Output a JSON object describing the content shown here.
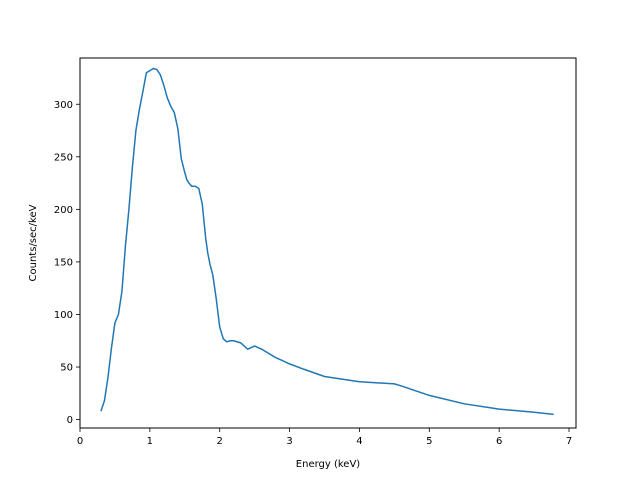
{
  "chart_data": {
    "type": "line",
    "title": "",
    "xlabel": "Energy (keV)",
    "ylabel": "Counts/sec/keV",
    "xlim": [
      0,
      7.1
    ],
    "ylim": [
      -8,
      344
    ],
    "x_ticks": [
      0,
      1,
      2,
      3,
      4,
      5,
      6,
      7
    ],
    "y_ticks": [
      0,
      50,
      100,
      150,
      200,
      250,
      300
    ],
    "grid": false,
    "legend": "none",
    "colors": {
      "line": "#1f77b4",
      "axes": "#000000",
      "background": "#ffffff"
    },
    "series": [
      {
        "x": [
          0.3,
          0.35,
          0.4,
          0.45,
          0.5,
          0.55,
          0.6,
          0.65,
          0.7,
          0.75,
          0.8,
          0.85,
          0.9,
          0.95,
          1.0,
          1.05,
          1.1,
          1.15,
          1.2,
          1.25,
          1.3,
          1.35,
          1.4,
          1.45,
          1.5,
          1.53,
          1.56,
          1.6,
          1.65,
          1.7,
          1.75,
          1.8,
          1.83,
          1.86,
          1.9,
          1.95,
          2.0,
          2.05,
          2.1,
          2.15,
          2.2,
          2.3,
          2.4,
          2.5,
          2.6,
          2.7,
          2.8,
          2.9,
          3.0,
          3.2,
          3.5,
          4.0,
          4.5,
          4.6,
          5.0,
          5.5,
          6.0,
          6.5,
          6.78
        ],
        "y": [
          8,
          18,
          40,
          68,
          92,
          100,
          122,
          165,
          200,
          240,
          275,
          295,
          312,
          330,
          332,
          334,
          333,
          328,
          318,
          306,
          298,
          292,
          277,
          248,
          235,
          228,
          225,
          222,
          222,
          220,
          205,
          172,
          158,
          148,
          138,
          115,
          88,
          77,
          74,
          75,
          75,
          73,
          67,
          70,
          67,
          63,
          59,
          56,
          53,
          48,
          41,
          36,
          34,
          32,
          23,
          15,
          10,
          7,
          5
        ]
      }
    ]
  }
}
